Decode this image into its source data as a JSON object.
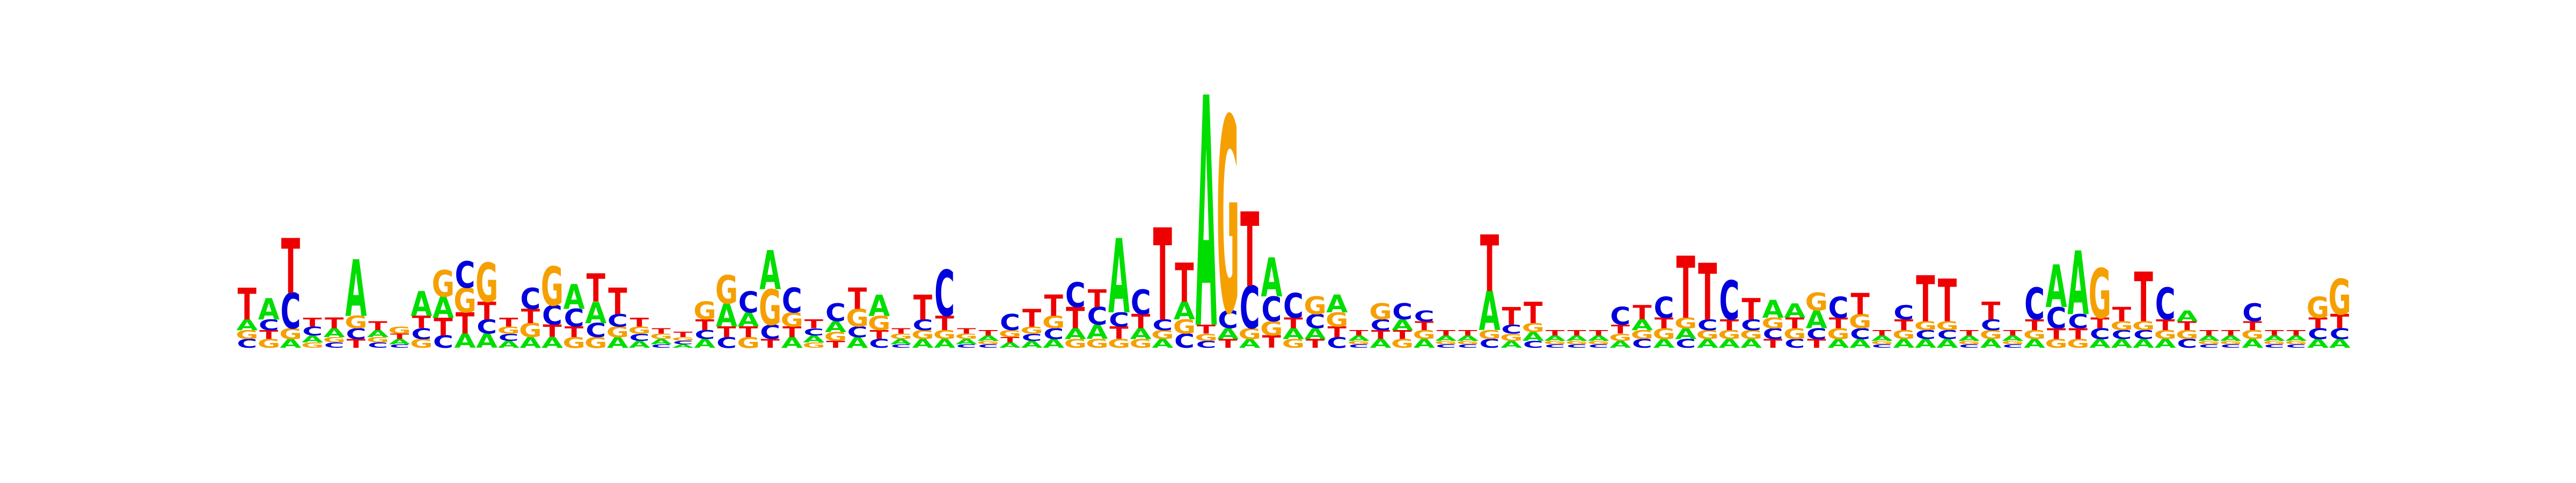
{
  "alphabet": [
    "A",
    "C",
    "G",
    "T"
  ],
  "colors": {
    "A": "#00dd00",
    "C": "#0000dd",
    "G": "#f5a000",
    "T": "#ee0000"
  },
  "logo": {
    "max_bits": 2,
    "positions": [
      {
        "A": 0.06,
        "C": 0.05,
        "G": 0.05,
        "T": 0.18
      },
      {
        "A": 0.12,
        "C": 0.06,
        "G": 0.05,
        "T": 0.05
      },
      {
        "A": 0.05,
        "C": 0.2,
        "G": 0.06,
        "T": 0.31
      },
      {
        "A": 0.04,
        "C": 0.05,
        "G": 0.03,
        "T": 0.05
      },
      {
        "A": 0.05,
        "C": 0.03,
        "G": 0.03,
        "T": 0.06
      },
      {
        "A": 0.32,
        "C": 0.06,
        "G": 0.07,
        "T": 0.05
      },
      {
        "A": 0.04,
        "C": 0.03,
        "G": 0.03,
        "T": 0.05
      },
      {
        "A": 0.03,
        "C": 0.02,
        "G": 0.04,
        "T": 0.03
      },
      {
        "A": 0.14,
        "C": 0.06,
        "G": 0.05,
        "T": 0.07
      },
      {
        "A": 0.12,
        "C": 0.07,
        "G": 0.15,
        "T": 0.1
      },
      {
        "A": 0.08,
        "C": 0.15,
        "G": 0.14,
        "T": 0.12
      },
      {
        "A": 0.08,
        "C": 0.08,
        "G": 0.22,
        "T": 0.1
      },
      {
        "A": 0.04,
        "C": 0.04,
        "G": 0.04,
        "T": 0.05
      },
      {
        "A": 0.06,
        "C": 0.12,
        "G": 0.08,
        "T": 0.08
      },
      {
        "A": 0.06,
        "C": 0.11,
        "G": 0.22,
        "T": 0.07
      },
      {
        "A": 0.14,
        "C": 0.1,
        "G": 0.06,
        "T": 0.06
      },
      {
        "A": 0.12,
        "C": 0.08,
        "G": 0.06,
        "T": 0.16
      },
      {
        "A": 0.06,
        "C": 0.07,
        "G": 0.06,
        "T": 0.15
      },
      {
        "A": 0.04,
        "C": 0.04,
        "G": 0.04,
        "T": 0.05
      },
      {
        "A": 0.03,
        "C": 0.02,
        "G": 0.03,
        "T": 0.03
      },
      {
        "A": 0.02,
        "C": 0.02,
        "G": 0.02,
        "T": 0.03
      },
      {
        "A": 0.05,
        "C": 0.05,
        "G": 0.1,
        "T": 0.06
      },
      {
        "A": 0.13,
        "C": 0.06,
        "G": 0.16,
        "T": 0.06
      },
      {
        "A": 0.08,
        "C": 0.12,
        "G": 0.06,
        "T": 0.06
      },
      {
        "A": 0.22,
        "C": 0.08,
        "G": 0.2,
        "T": 0.05
      },
      {
        "A": 0.06,
        "C": 0.14,
        "G": 0.08,
        "T": 0.06
      },
      {
        "A": 0.04,
        "C": 0.04,
        "G": 0.03,
        "T": 0.05
      },
      {
        "A": 0.06,
        "C": 0.1,
        "G": 0.05,
        "T": 0.04
      },
      {
        "A": 0.06,
        "C": 0.06,
        "G": 0.1,
        "T": 0.12
      },
      {
        "A": 0.12,
        "C": 0.05,
        "G": 0.08,
        "T": 0.05
      },
      {
        "A": 0.03,
        "C": 0.02,
        "G": 0.03,
        "T": 0.03
      },
      {
        "A": 0.05,
        "C": 0.06,
        "G": 0.05,
        "T": 0.14
      },
      {
        "A": 0.05,
        "C": 0.26,
        "G": 0.05,
        "T": 0.08
      },
      {
        "A": 0.03,
        "C": 0.02,
        "G": 0.03,
        "T": 0.03
      },
      {
        "A": 0.03,
        "C": 0.02,
        "G": 0.02,
        "T": 0.03
      },
      {
        "A": 0.03,
        "C": 0.09,
        "G": 0.04,
        "T": 0.03
      },
      {
        "A": 0.04,
        "C": 0.04,
        "G": 0.04,
        "T": 0.1
      },
      {
        "A": 0.05,
        "C": 0.06,
        "G": 0.07,
        "T": 0.12
      },
      {
        "A": 0.06,
        "C": 0.14,
        "G": 0.05,
        "T": 0.12
      },
      {
        "A": 0.08,
        "C": 0.1,
        "G": 0.05,
        "T": 0.1
      },
      {
        "A": 0.42,
        "C": 0.08,
        "G": 0.05,
        "T": 0.07
      },
      {
        "A": 0.06,
        "C": 0.14,
        "G": 0.05,
        "T": 0.08
      },
      {
        "A": 0.05,
        "C": 0.06,
        "G": 0.05,
        "T": 0.52
      },
      {
        "A": 0.1,
        "C": 0.08,
        "G": 0.08,
        "T": 0.22
      },
      {
        "A": 1.3,
        "C": 0.04,
        "G": 0.04,
        "T": 0.05
      },
      {
        "A": 0.06,
        "C": 0.1,
        "G": 1.1,
        "T": 0.05
      },
      {
        "A": 0.05,
        "C": 0.24,
        "G": 0.06,
        "T": 0.42
      },
      {
        "A": 0.22,
        "C": 0.14,
        "G": 0.08,
        "T": 0.07
      },
      {
        "A": 0.06,
        "C": 0.14,
        "G": 0.05,
        "T": 0.06
      },
      {
        "A": 0.06,
        "C": 0.08,
        "G": 0.1,
        "T": 0.05
      },
      {
        "A": 0.1,
        "C": 0.06,
        "G": 0.08,
        "T": 0.06
      },
      {
        "A": 0.03,
        "C": 0.02,
        "G": 0.02,
        "T": 0.03
      },
      {
        "A": 0.05,
        "C": 0.06,
        "G": 0.09,
        "T": 0.05
      },
      {
        "A": 0.06,
        "C": 0.09,
        "G": 0.05,
        "T": 0.05
      },
      {
        "A": 0.05,
        "C": 0.06,
        "G": 0.05,
        "T": 0.05
      },
      {
        "A": 0.03,
        "C": 0.02,
        "G": 0.02,
        "T": 0.03
      },
      {
        "A": 0.03,
        "C": 0.02,
        "G": 0.02,
        "T": 0.03
      },
      {
        "A": 0.22,
        "C": 0.05,
        "G": 0.05,
        "T": 0.32
      },
      {
        "A": 0.04,
        "C": 0.05,
        "G": 0.04,
        "T": 0.1
      },
      {
        "A": 0.05,
        "C": 0.04,
        "G": 0.05,
        "T": 0.12
      },
      {
        "A": 0.03,
        "C": 0.02,
        "G": 0.02,
        "T": 0.03
      },
      {
        "A": 0.03,
        "C": 0.02,
        "G": 0.02,
        "T": 0.03
      },
      {
        "A": 0.03,
        "C": 0.02,
        "G": 0.02,
        "T": 0.03
      },
      {
        "A": 0.04,
        "C": 0.1,
        "G": 0.04,
        "T": 0.05
      },
      {
        "A": 0.06,
        "C": 0.05,
        "G": 0.05,
        "T": 0.08
      },
      {
        "A": 0.05,
        "C": 0.12,
        "G": 0.06,
        "T": 0.06
      },
      {
        "A": 0.06,
        "C": 0.05,
        "G": 0.06,
        "T": 0.35
      },
      {
        "A": 0.05,
        "C": 0.06,
        "G": 0.05,
        "T": 0.32
      },
      {
        "A": 0.05,
        "C": 0.22,
        "G": 0.05,
        "T": 0.06
      },
      {
        "A": 0.05,
        "C": 0.06,
        "G": 0.05,
        "T": 0.12
      },
      {
        "A": 0.1,
        "C": 0.06,
        "G": 0.06,
        "T": 0.05
      },
      {
        "A": 0.08,
        "C": 0.05,
        "G": 0.06,
        "T": 0.06
      },
      {
        "A": 0.1,
        "C": 0.06,
        "G": 0.1,
        "T": 0.05
      },
      {
        "A": 0.05,
        "C": 0.12,
        "G": 0.06,
        "T": 0.06
      },
      {
        "A": 0.05,
        "C": 0.06,
        "G": 0.08,
        "T": 0.12
      },
      {
        "A": 0.03,
        "C": 0.02,
        "G": 0.02,
        "T": 0.03
      },
      {
        "A": 0.05,
        "C": 0.08,
        "G": 0.05,
        "T": 0.06
      },
      {
        "A": 0.05,
        "C": 0.05,
        "G": 0.05,
        "T": 0.26
      },
      {
        "A": 0.05,
        "C": 0.05,
        "G": 0.05,
        "T": 0.24
      },
      {
        "A": 0.03,
        "C": 0.02,
        "G": 0.02,
        "T": 0.03
      },
      {
        "A": 0.05,
        "C": 0.06,
        "G": 0.05,
        "T": 0.1
      },
      {
        "A": 0.03,
        "C": 0.02,
        "G": 0.02,
        "T": 0.03
      },
      {
        "A": 0.05,
        "C": 0.18,
        "G": 0.05,
        "T": 0.06
      },
      {
        "A": 0.24,
        "C": 0.12,
        "G": 0.05,
        "T": 0.06
      },
      {
        "A": 0.36,
        "C": 0.08,
        "G": 0.05,
        "T": 0.06
      },
      {
        "A": 0.05,
        "C": 0.06,
        "G": 0.28,
        "T": 0.06
      },
      {
        "A": 0.05,
        "C": 0.05,
        "G": 0.05,
        "T": 0.08
      },
      {
        "A": 0.05,
        "C": 0.05,
        "G": 0.05,
        "T": 0.28
      },
      {
        "A": 0.05,
        "C": 0.18,
        "G": 0.05,
        "T": 0.06
      },
      {
        "A": 0.06,
        "C": 0.05,
        "G": 0.05,
        "T": 0.05
      },
      {
        "A": 0.03,
        "C": 0.02,
        "G": 0.02,
        "T": 0.03
      },
      {
        "A": 0.03,
        "C": 0.02,
        "G": 0.02,
        "T": 0.03
      },
      {
        "A": 0.05,
        "C": 0.1,
        "G": 0.05,
        "T": 0.05
      },
      {
        "A": 0.03,
        "C": 0.02,
        "G": 0.02,
        "T": 0.03
      },
      {
        "A": 0.03,
        "C": 0.02,
        "G": 0.02,
        "T": 0.03
      },
      {
        "A": 0.05,
        "C": 0.06,
        "G": 0.12,
        "T": 0.06
      },
      {
        "A": 0.05,
        "C": 0.06,
        "G": 0.2,
        "T": 0.08
      }
    ]
  }
}
